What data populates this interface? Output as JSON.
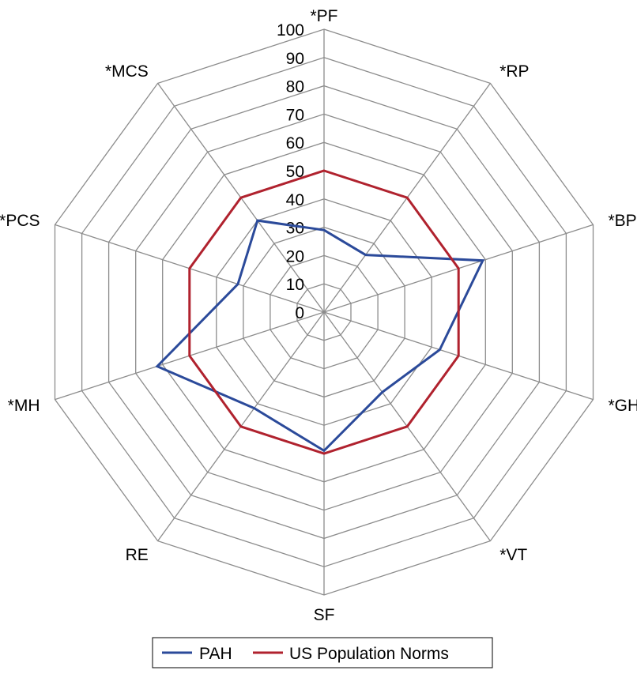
{
  "chart_data": {
    "type": "radar",
    "categories": [
      "*PF",
      "*RP",
      "*BP",
      "*GH",
      "*VT",
      "SF",
      "RE",
      "*MH",
      "*PCS",
      "*MCS"
    ],
    "rlim": [
      0,
      100
    ],
    "ticks": [
      0,
      10,
      20,
      30,
      40,
      50,
      60,
      70,
      80,
      90,
      100
    ],
    "tick_labels": [
      "0",
      "10",
      "20",
      "30",
      "40",
      "50",
      "60",
      "70",
      "80",
      "90",
      "100"
    ],
    "grid": true,
    "legend_position": "bottom",
    "series": [
      {
        "name": "PAH",
        "color": "#2b4a9a",
        "values": [
          29,
          25,
          59,
          43,
          35,
          49,
          42,
          62,
          32,
          40
        ]
      },
      {
        "name": "US Population Norms",
        "color": "#b0222e",
        "values": [
          50,
          50,
          50,
          50,
          50,
          50,
          50,
          50,
          50,
          50
        ]
      }
    ]
  }
}
